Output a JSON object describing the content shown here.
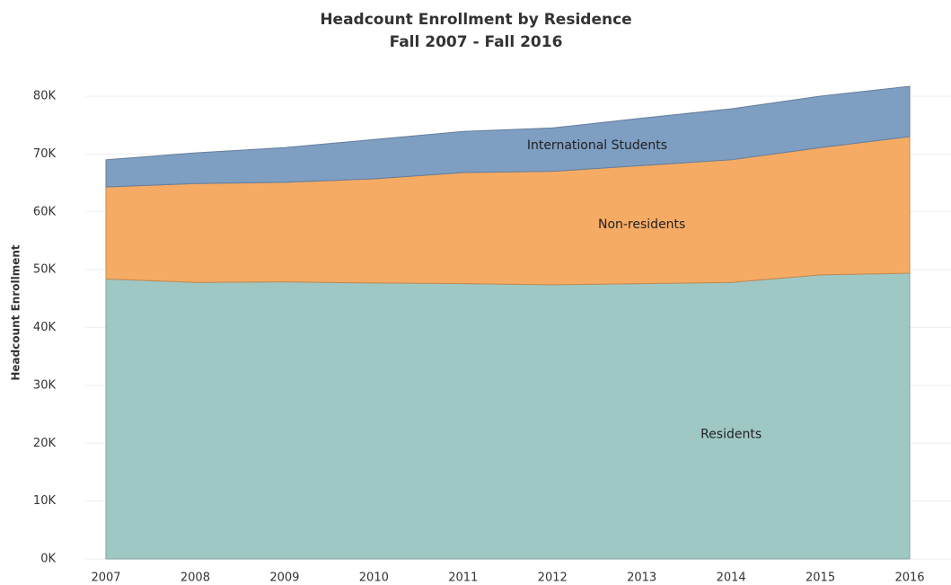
{
  "chart_data": {
    "type": "stacked_area",
    "title": "Headcount Enrollment by Residence",
    "subtitle": "Fall 2007 - Fall 2016",
    "y_label": "Headcount Enrollment",
    "categories": [
      "2007",
      "2008",
      "2009",
      "2010",
      "2011",
      "2012",
      "2013",
      "2014",
      "2015",
      "2016"
    ],
    "series": [
      {
        "name": "Residents",
        "color": "#9fc8c5",
        "values": [
          48400,
          47800,
          47900,
          47700,
          47600,
          47400,
          47600,
          47800,
          49100,
          49400
        ]
      },
      {
        "name": "Non-residents",
        "color": "#f5ab64",
        "values": [
          15900,
          17100,
          17200,
          18000,
          19200,
          19600,
          20400,
          21200,
          22000,
          23600
        ]
      },
      {
        "name": "International Students",
        "color": "#7e9ec2",
        "values": [
          4700,
          5300,
          6000,
          6800,
          7100,
          7500,
          8200,
          8800,
          8900,
          8700
        ]
      }
    ],
    "ylim": [
      0,
      80000
    ],
    "yticks": [
      {
        "value": 0,
        "label": "0K"
      },
      {
        "value": 10000,
        "label": "10K"
      },
      {
        "value": 20000,
        "label": "20K"
      },
      {
        "value": 30000,
        "label": "30K"
      },
      {
        "value": 40000,
        "label": "40K"
      },
      {
        "value": 50000,
        "label": "50K"
      },
      {
        "value": 60000,
        "label": "60K"
      },
      {
        "value": 70000,
        "label": "70K"
      },
      {
        "value": 80000,
        "label": "80K"
      }
    ],
    "grid": true
  }
}
